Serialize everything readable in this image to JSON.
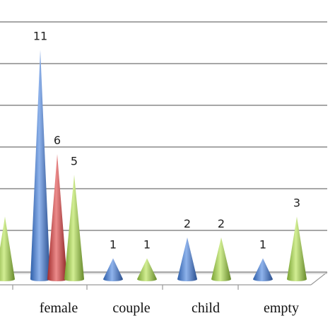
{
  "chart_data": {
    "type": "bar",
    "title": "",
    "xlabel": "",
    "ylabel": "",
    "ylim": [
      0,
      12
    ],
    "grid": true,
    "categories": [
      "",
      "female",
      "couple",
      "child",
      "empty"
    ],
    "series": [
      {
        "values": [
          null,
          11,
          1,
          2,
          1
        ]
      },
      {
        "values": [
          null,
          6,
          null,
          null,
          null
        ]
      },
      {
        "values": [
          3,
          5,
          1,
          2,
          3
        ]
      }
    ],
    "colors": [
      "#4a7fd0",
      "#cc4545",
      "#9cc84a"
    ]
  }
}
